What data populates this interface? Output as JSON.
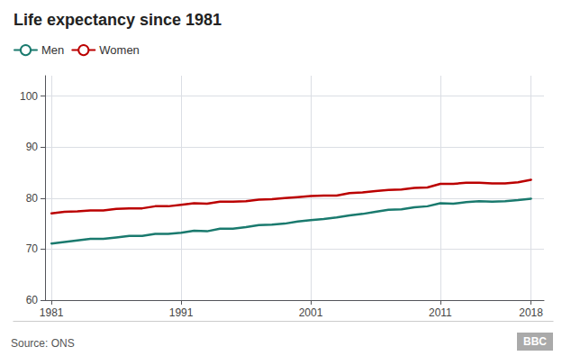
{
  "chart_data": {
    "type": "line",
    "title": "Life expectancy since 1981",
    "annotations": [
      "Source: ONS",
      "BBC"
    ],
    "x": [
      1981,
      1982,
      1983,
      1984,
      1985,
      1986,
      1987,
      1988,
      1989,
      1990,
      1991,
      1992,
      1993,
      1994,
      1995,
      1996,
      1997,
      1998,
      1999,
      2000,
      2001,
      2002,
      2003,
      2004,
      2005,
      2006,
      2007,
      2008,
      2009,
      2010,
      2011,
      2012,
      2013,
      2014,
      2015,
      2016,
      2017,
      2018
    ],
    "series": [
      {
        "name": "Men",
        "color": "#1a7a6e",
        "values": [
          71.1,
          71.4,
          71.7,
          72.0,
          72.0,
          72.3,
          72.6,
          72.6,
          73.0,
          73.0,
          73.2,
          73.6,
          73.5,
          74.0,
          74.0,
          74.3,
          74.7,
          74.8,
          75.0,
          75.4,
          75.7,
          75.9,
          76.2,
          76.6,
          76.9,
          77.3,
          77.7,
          77.8,
          78.2,
          78.4,
          79.0,
          78.9,
          79.2,
          79.4,
          79.3,
          79.4,
          79.6,
          79.9
        ]
      },
      {
        "name": "Women",
        "color": "#bb0000",
        "values": [
          77.0,
          77.3,
          77.4,
          77.6,
          77.6,
          77.9,
          78.0,
          78.0,
          78.4,
          78.4,
          78.7,
          79.0,
          78.9,
          79.3,
          79.3,
          79.4,
          79.7,
          79.8,
          80.0,
          80.2,
          80.4,
          80.5,
          80.5,
          81.0,
          81.1,
          81.4,
          81.6,
          81.7,
          82.0,
          82.1,
          82.8,
          82.8,
          83.0,
          83.0,
          82.9,
          82.9,
          83.1,
          83.6
        ]
      }
    ],
    "xlim": [
      1980.5,
      2019.0
    ],
    "xticks": [
      1981,
      1991,
      2001,
      2011,
      2018
    ],
    "ylim": [
      60,
      104
    ],
    "yticks": [
      60,
      70,
      80,
      90,
      100
    ],
    "grid": true,
    "legend": "upper left"
  }
}
